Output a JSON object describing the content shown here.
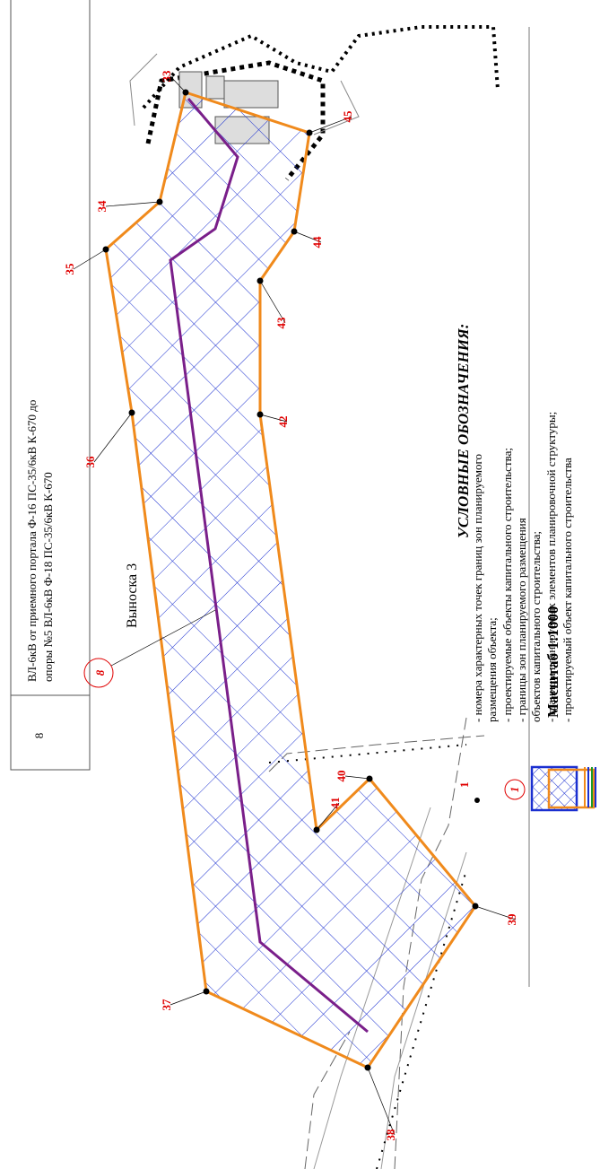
{
  "table": {
    "rows": [
      [
        "8",
        "ВЛ-6кВ от приемного портала Ф-16 ПС-35/6кВ К-670 до",
        "опоры №5 ВЛ-6кВ Ф-18 ПС-35/6кВ К-670"
      ]
    ]
  },
  "callout": "Выноска 3",
  "scale": "Масштаб 1:1000",
  "zone_label": "8",
  "points": [
    "33",
    "45",
    "44",
    "43",
    "42",
    "41",
    "40",
    "39",
    "38",
    "37",
    "36",
    "35",
    "34"
  ],
  "legend": {
    "title": "УСЛОВНЫЕ ОБОЗНАЧЕНИЯ:",
    "symbols": [
      "1",
      "1"
    ],
    "items": [
      [
        "- номера характерных точек границ зон планируемого",
        "размещения объекта;"
      ],
      [
        "- проектируемые объекты капитального строительства;"
      ],
      [
        "- границы зон планируемого размещения",
        "объектов капитального строительства;"
      ],
      [
        "- границы планируемых элементов планировочной структуры;"
      ],
      [
        "- проектируемый объект капитального строительства"
      ]
    ]
  }
}
